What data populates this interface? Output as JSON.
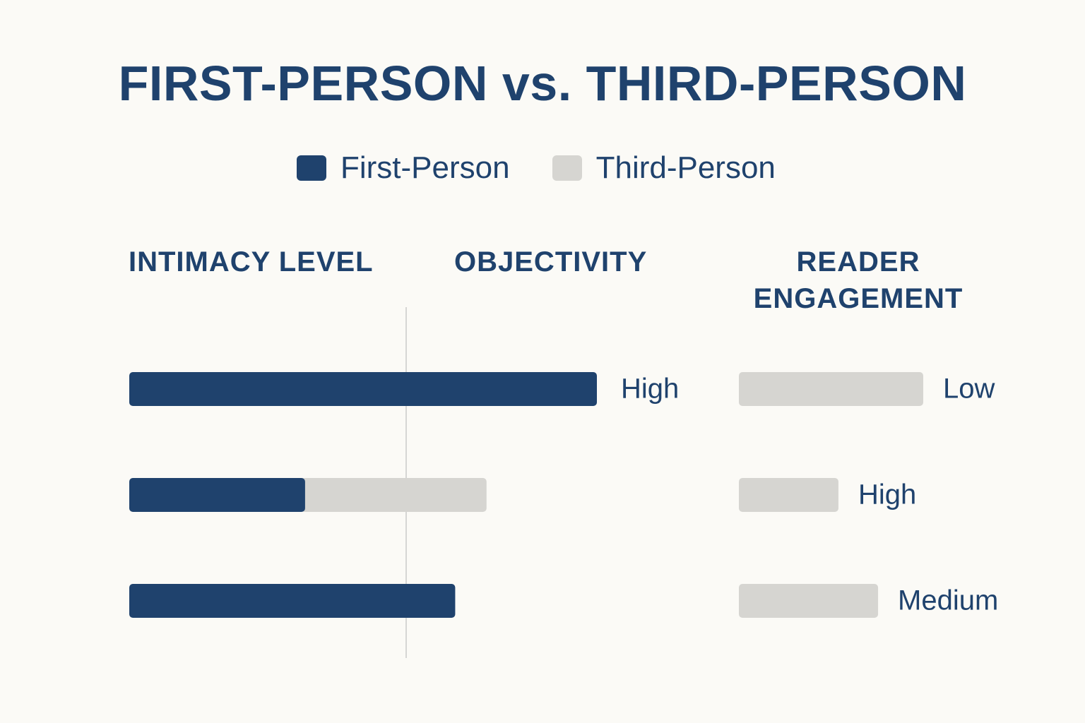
{
  "title": "FIRST-PERSON vs. THIRD-PERSON",
  "legend": {
    "first": "First-Person",
    "third": "Third-Person"
  },
  "colors": {
    "first": "#1f426d",
    "third": "#d6d5d1",
    "divider": "#c9c9c9",
    "background": "#fbfaf6",
    "text": "#1f426d"
  },
  "headers": {
    "intimacy": "INTIMACY LEVEL",
    "objectivity": "OBJECTIVITY",
    "engagement_line1": "READER",
    "engagement_line2": "ENGAGEMENT"
  },
  "chart_data": {
    "type": "bar",
    "title": "FIRST-PERSON vs. THIRD-PERSON",
    "legend_position": "top-center",
    "grid": false,
    "series_names": [
      "First-Person",
      "Third-Person"
    ],
    "left_rows": [
      {
        "first": 1.0,
        "third": 0.0,
        "label": "High"
      },
      {
        "first": 0.376,
        "third": 0.388,
        "label": ""
      },
      {
        "first": 0.697,
        "third": 0.0,
        "label": ""
      }
    ],
    "right_rows": [
      {
        "third": 1.0,
        "label": "Low"
      },
      {
        "third": 0.54,
        "label": "High"
      },
      {
        "third": 0.755,
        "label": "Medium"
      }
    ]
  }
}
